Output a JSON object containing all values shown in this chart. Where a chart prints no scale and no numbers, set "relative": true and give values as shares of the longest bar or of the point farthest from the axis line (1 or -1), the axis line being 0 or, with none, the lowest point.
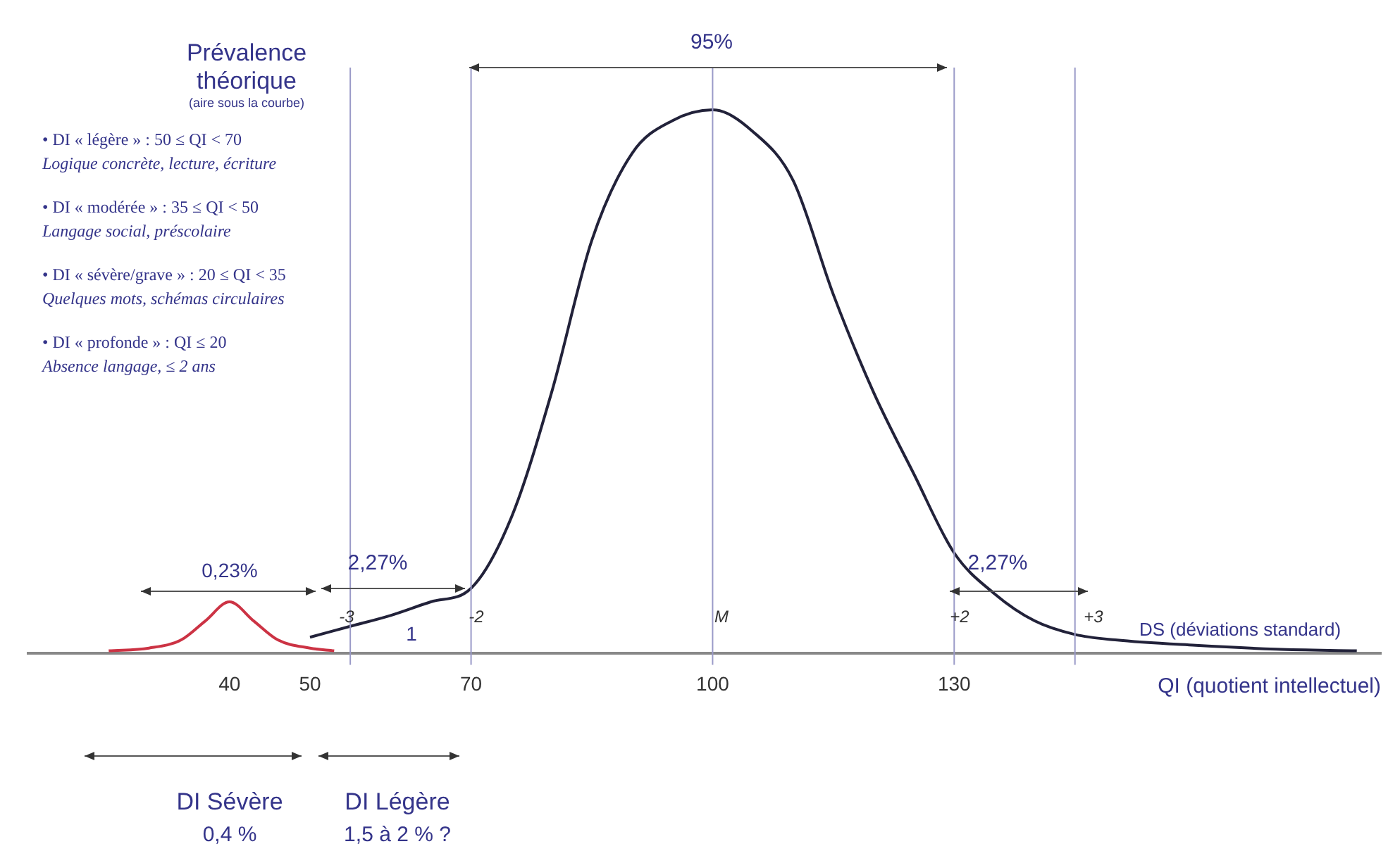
{
  "chart_data": {
    "type": "line",
    "relative": true,
    "title": "Prévalence théorique",
    "subtitle": "(aire sous la courbe)",
    "xlabel": "QI (quotient intellectuel)",
    "xlim": [
      15,
      183
    ],
    "xticks": [
      40,
      50,
      70,
      100,
      130
    ],
    "grid": false,
    "legend": false,
    "marker": "none",
    "line_style": "solid",
    "series": [
      {
        "color": "#22223a",
        "x": [
          50,
          55,
          60,
          65,
          70,
          75,
          80,
          85,
          90,
          95,
          100,
          105,
          110,
          115,
          120,
          125,
          130,
          135,
          140,
          145,
          150,
          160,
          170,
          180
        ],
        "values": [
          0.03,
          0.05,
          0.07,
          0.095,
          0.12,
          0.25,
          0.48,
          0.76,
          0.92,
          0.98,
          1,
          0.96,
          0.87,
          0.66,
          0.48,
          0.33,
          0.185,
          0.11,
          0.06,
          0.035,
          0.025,
          0.015,
          0.008,
          0.005
        ]
      },
      {
        "color": "#cc3344",
        "x": [
          25,
          30,
          34,
          37,
          40,
          43,
          46,
          50,
          53
        ],
        "values": [
          0.005,
          0.01,
          0.025,
          0.06,
          0.095,
          0.06,
          0.025,
          0.01,
          0.005
        ]
      }
    ],
    "ref_lines": [
      {
        "axis": "x",
        "value": 55,
        "color": "#9a9ac8"
      },
      {
        "axis": "x",
        "value": 70,
        "color": "#9a9ac8"
      },
      {
        "axis": "x",
        "value": 100,
        "color": "#9a9ac8"
      },
      {
        "axis": "x",
        "value": 130,
        "color": "#9a9ac8"
      },
      {
        "axis": "x",
        "value": 145,
        "color": "#9a9ac8"
      }
    ],
    "annotations": [
      "• DI « légère » : 50 ≤ QI < 70",
      "Logique concrète, lecture, écriture",
      "• DI « modérée » : 35 ≤ QI < 50",
      "Langage social, préscolaire",
      "• DI « sévère/grave » : 20 ≤ QI < 35",
      "Quelques mots, schémas circulaires",
      "• DI « profonde » : QI ≤ 20",
      "Absence langage, ≤ 2 ans",
      "95%",
      "2,27%",
      "2,27%",
      "0,23%",
      "1",
      "DS (déviations standard)",
      "DI Sévère",
      "0,4 %",
      "DI Légère",
      "1,5 à 2 % ?",
      "-3",
      "-2",
      "M",
      "+2",
      "+3"
    ]
  }
}
